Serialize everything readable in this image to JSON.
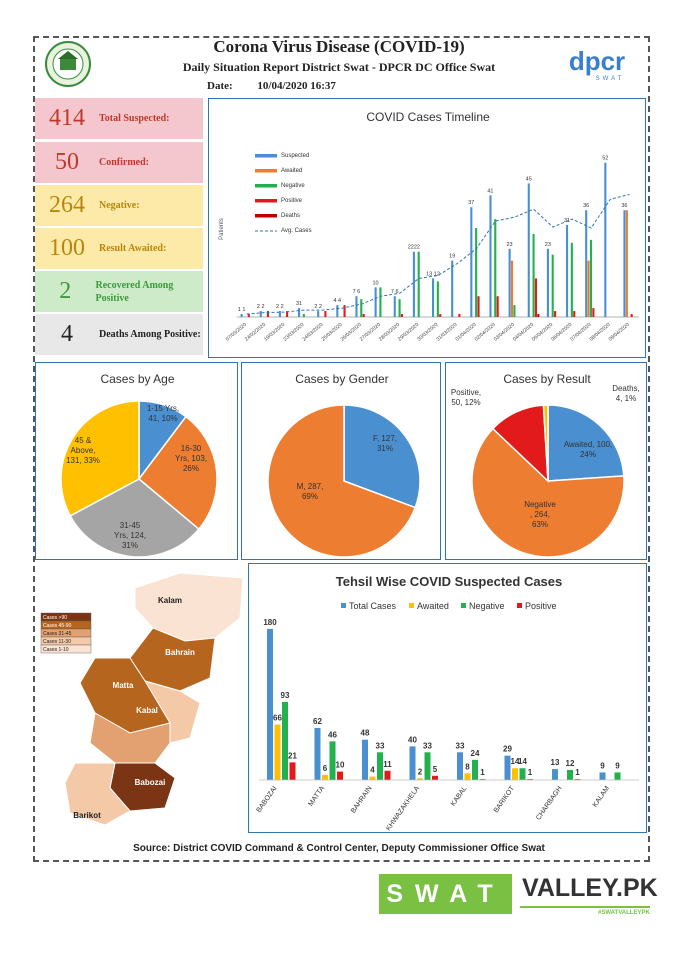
{
  "header": {
    "title": "Corona Virus Disease (COVID-19)",
    "subtitle": "Daily Situation Report District Swat - DPCR DC Office Swat",
    "date_label": "Date:",
    "date_value": "10/04/2020 16:37",
    "logo_text": "dpcr",
    "logo_sub": "SWAT"
  },
  "stats": [
    {
      "value": "414",
      "label": "Total Suspected:",
      "bg": "#f4c7ce",
      "color": "#c0392b"
    },
    {
      "value": "50",
      "label": "Confirmed:",
      "bg": "#f4c7ce",
      "color": "#c0392b"
    },
    {
      "value": "264",
      "label": "Negative:",
      "bg": "#fdeaa8",
      "color": "#b8860b"
    },
    {
      "value": "100",
      "label": "Result Awaited:",
      "bg": "#fdeaa8",
      "color": "#b8860b"
    },
    {
      "value": "2",
      "label": "Recovered Among Positive",
      "bg": "#cdebc8",
      "color": "#3c9a3c"
    },
    {
      "value": "4",
      "label": "Deaths Among Positive:",
      "bg": "#e8e8e8",
      "color": "#222222"
    }
  ],
  "colors": {
    "suspected": "#4a8fd0",
    "awaited": "#ed7d31",
    "negative": "#22b14c",
    "positive": "#e31a1c",
    "deaths": "#c00000",
    "avg": "#2e75b6",
    "grey": "#a5a5a5",
    "yellow": "#ffc000"
  },
  "chart_data": [
    {
      "type": "bar",
      "title": "COVID Cases Timeline",
      "ylabel": "Patients",
      "categories": [
        "07/03/2020",
        "24/02/2020",
        "19/03/2020",
        "23/03/2020",
        "24/03/2020",
        "25/03/2020",
        "26/03/2020",
        "27/03/2020",
        "28/03/2020",
        "29/03/2020",
        "30/03/2020",
        "31/03/2020",
        "01/04/2020",
        "02/04/2020",
        "03/04/2020",
        "04/04/2020",
        "05/04/2020",
        "06/04/2020",
        "07/04/2020",
        "08/04/2020",
        "09/04/2020"
      ],
      "series": [
        {
          "name": "Suspected",
          "values": [
            1,
            2,
            2,
            3,
            2,
            4,
            7,
            10,
            7,
            22,
            13,
            19,
            37,
            41,
            23,
            45,
            23,
            31,
            36,
            52,
            36
          ]
        },
        {
          "name": "Awaited",
          "values": [
            0,
            0,
            0,
            0,
            0,
            0,
            0,
            0,
            0,
            0,
            0,
            0,
            0,
            0,
            19,
            0,
            0,
            0,
            19,
            0,
            36
          ]
        },
        {
          "name": "Negative",
          "values": [
            0,
            0,
            0,
            1,
            0,
            0,
            6,
            10,
            6,
            22,
            12,
            0,
            30,
            33,
            4,
            28,
            21,
            25,
            26,
            0,
            0
          ]
        },
        {
          "name": "Positive",
          "values": [
            1,
            2,
            2,
            0,
            2,
            4,
            1,
            0,
            1,
            0,
            1,
            1,
            7,
            7,
            0,
            13,
            2,
            2,
            3,
            0,
            1
          ]
        },
        {
          "name": "Deaths",
          "values": [
            0,
            0,
            0,
            0,
            0,
            0,
            0,
            0,
            0,
            0,
            0,
            0,
            0,
            0,
            0,
            1,
            0,
            0,
            0,
            0,
            0
          ]
        },
        {
          "name": "Avg. Cases"
        }
      ],
      "bar_labels": [
        "1 1",
        "2 2",
        "2 2",
        "31",
        "2 2",
        "4 4",
        "7 6",
        "10",
        "7 6",
        "2222",
        "13 12",
        "19",
        "37",
        "41",
        "23",
        "45",
        "23",
        "31",
        "36",
        "52",
        "36"
      ],
      "extra_labels": [
        "30",
        "33",
        "19",
        "2",
        "29",
        "19",
        "21",
        "25",
        "26",
        "12",
        "7",
        "7",
        "4",
        "1",
        "13",
        "2",
        "2",
        "5",
        "3",
        "1",
        "1",
        "1",
        "2",
        "1",
        "1"
      ],
      "ylim": [
        0,
        60
      ]
    },
    {
      "type": "pie",
      "title": "Cases by Age",
      "labels": [
        "1-15 Yrs, 41, 10%",
        "16-30 Yrs, 103, 26%",
        "31-45 Yrs, 124, 31%",
        "45 & Above, 131, 33%"
      ],
      "values": [
        41,
        103,
        124,
        131
      ],
      "colors": [
        "#4a8fd0",
        "#ed7d31",
        "#a5a5a5",
        "#ffc000"
      ]
    },
    {
      "type": "pie",
      "title": "Cases by Gender",
      "labels": [
        "F, 127, 31%",
        "M, 287, 69%"
      ],
      "values": [
        127,
        287
      ],
      "colors": [
        "#4a8fd0",
        "#ed7d31"
      ]
    },
    {
      "type": "pie",
      "title": "Cases by Result",
      "labels": [
        "Awaited, 100, 24%",
        "Negative , 264, 63%",
        "Positive, 50, 12%",
        "Deaths, 4, 1%"
      ],
      "values": [
        100,
        264,
        50,
        4
      ],
      "colors": [
        "#4a8fd0",
        "#ed7d31",
        "#e31a1c",
        "#ffc000"
      ]
    },
    {
      "type": "bar",
      "title": "Tehsil Wise COVID Suspected Cases",
      "categories": [
        "BABOZAI",
        "MATTA",
        "BAHRAIN",
        "KHWAZAKHELA",
        "KABAL",
        "BARIKOT",
        "CHARBAGH",
        "KALAM"
      ],
      "series": [
        {
          "name": "Total Cases",
          "values": [
            180,
            62,
            48,
            40,
            33,
            29,
            13,
            9
          ]
        },
        {
          "name": "Awaited",
          "values": [
            66,
            6,
            4,
            2,
            8,
            14,
            0,
            0
          ]
        },
        {
          "name": "Negative",
          "values": [
            93,
            46,
            33,
            33,
            24,
            14,
            12,
            9
          ]
        },
        {
          "name": "Positive",
          "values": [
            21,
            10,
            11,
            5,
            1,
            1,
            1,
            0
          ]
        }
      ],
      "ylim": [
        0,
        200
      ]
    }
  ],
  "map": {
    "legend": [
      "Cases >90",
      "Cases 45-90",
      "Cases 31-45",
      "Cases 11-30",
      "Cases 1-10"
    ],
    "legend_colors": [
      "#7b3514",
      "#b5651d",
      "#e3a070",
      "#f4c9a8",
      "#fae3d2"
    ],
    "labels": [
      "Kalam",
      "Bahrain",
      "Matta",
      "Kabal",
      "Babozai",
      "Barikot"
    ]
  },
  "source": "Source: District COVID Command & Control Center, Deputy Commissioner Office Swat",
  "footer": {
    "swat": "SWAT",
    "valley": "VALLEY.PK",
    "hashtag": "#SWATVALLEYPK"
  }
}
